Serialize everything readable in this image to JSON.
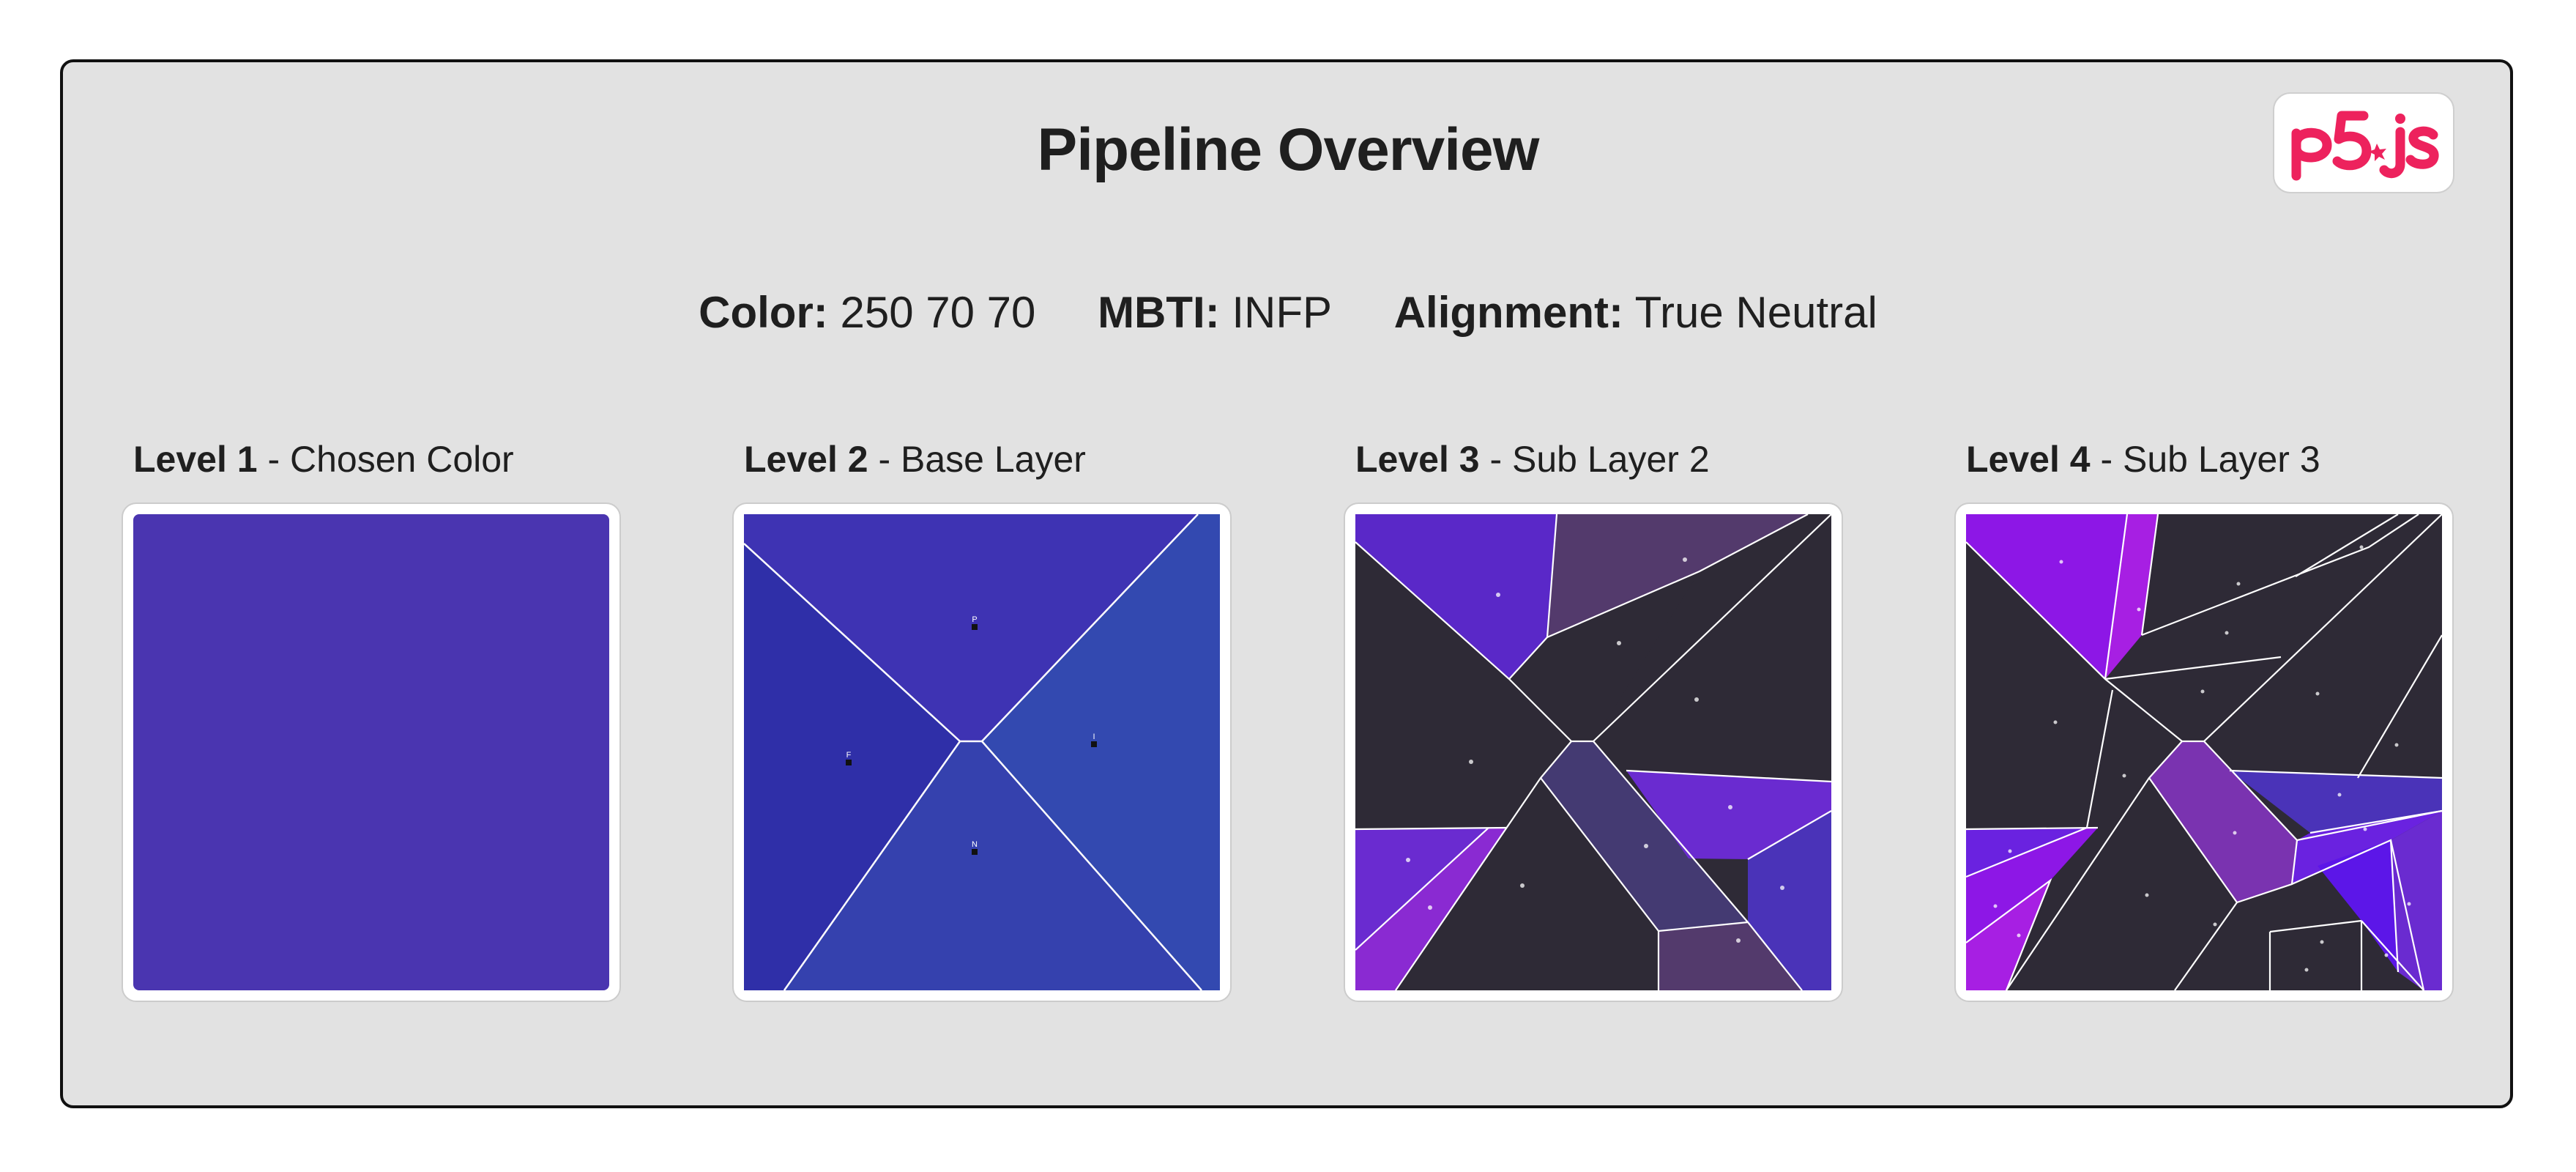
{
  "header": {
    "title": "Pipeline Overview"
  },
  "logo": {
    "text": "p5.js",
    "color": "#ed225d"
  },
  "info": {
    "color_label": "Color:",
    "color_value": "250 70 70",
    "mbti_label": "MBTI:",
    "mbti_value": "INFP",
    "alignment_label": "Alignment:",
    "alignment_value": "True Neutral"
  },
  "levels": [
    {
      "number": "Level 1",
      "name": " - Chosen Color"
    },
    {
      "number": "Level 2",
      "name": " - Base Layer"
    },
    {
      "number": "Level 3",
      "name": " - Sub Layer 2"
    },
    {
      "number": "Level 4",
      "name": " - Sub Layer 3"
    }
  ],
  "level1": {
    "fill": "#4a35b0"
  },
  "level2": {
    "regions": [
      {
        "fill": "#3e33b3",
        "letter": "P"
      },
      {
        "fill": "#2f2fa8",
        "letter": "F"
      },
      {
        "fill": "#3349b0",
        "letter": "I"
      },
      {
        "fill": "#3541ae",
        "letter": "N"
      }
    ]
  },
  "palette": {
    "dark": "#2e2a36",
    "violet": "#5a28c8",
    "plum": "#533a6c",
    "indigo": "#443a72",
    "purple": "#6a2bd0",
    "blue_violet": "#4a33b8",
    "magenta": "#8a2ad2",
    "bright_purple": "#8d17e6",
    "fuchsia": "#a71fe3",
    "mid_purple": "#7a33b0",
    "deep_violet": "#6a22e0",
    "electric": "#5c16e8"
  }
}
